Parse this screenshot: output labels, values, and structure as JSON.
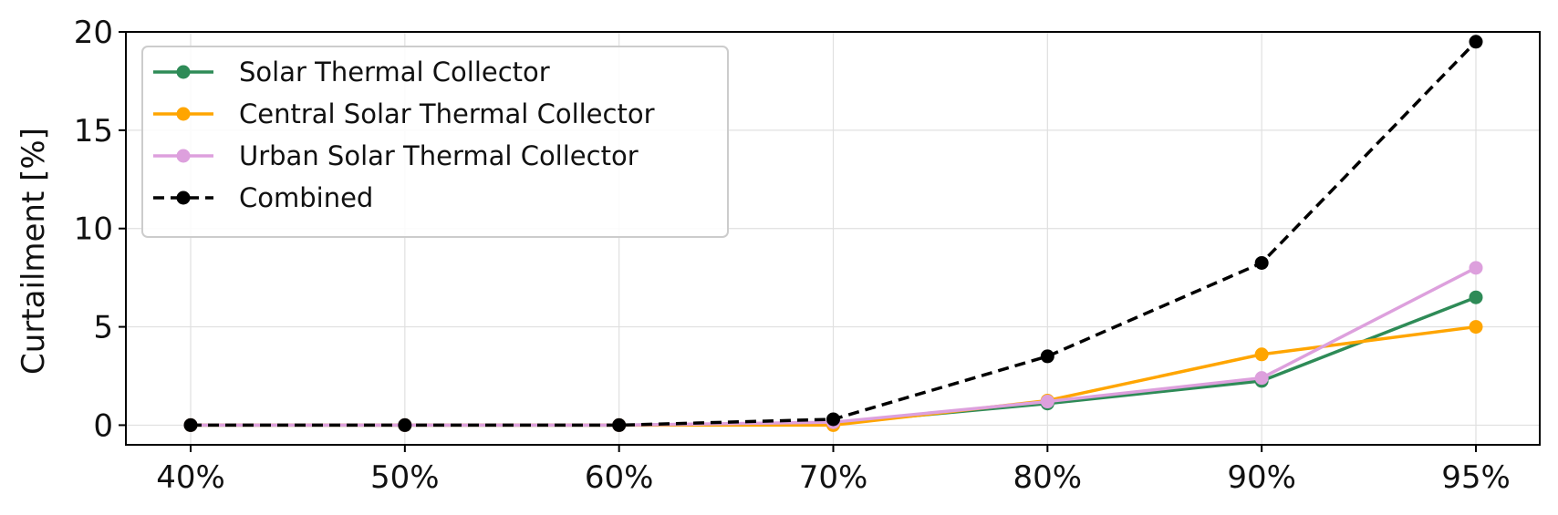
{
  "chart_data": {
    "type": "line",
    "categories": [
      "40%",
      "50%",
      "60%",
      "70%",
      "80%",
      "90%",
      "95%"
    ],
    "xlabel": "",
    "ylabel": "Curtailment [%]",
    "ylim": [
      -1,
      20
    ],
    "yticks": [
      0,
      5,
      10,
      15,
      20
    ],
    "grid": true,
    "legend_position": "upper-left",
    "series": [
      {
        "name": "Solar Thermal Collector",
        "color": "#2e8b57",
        "dashed": false,
        "values": [
          0,
          0,
          0,
          0.1,
          1.1,
          2.25,
          6.5
        ]
      },
      {
        "name": "Central Solar Thermal Collector",
        "color": "#ffa500",
        "dashed": false,
        "values": [
          0,
          0,
          0,
          0.0,
          1.25,
          3.6,
          5.0
        ]
      },
      {
        "name": "Urban Solar Thermal Collector",
        "color": "#dda0dd",
        "dashed": false,
        "values": [
          0,
          0,
          0,
          0.15,
          1.2,
          2.4,
          8.0
        ]
      },
      {
        "name": "Combined",
        "color": "#000000",
        "dashed": true,
        "values": [
          0,
          0,
          0,
          0.3,
          3.5,
          8.25,
          19.5
        ]
      }
    ]
  }
}
